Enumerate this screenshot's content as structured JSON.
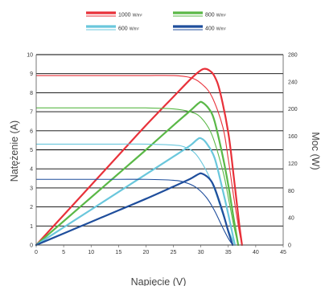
{
  "chart_data": {
    "type": "line",
    "xlabel": "Napięcie (V)",
    "ylabel": "Natężenie (A)",
    "y2label": "Moc (W)",
    "xlim": [
      0,
      45
    ],
    "ylim": [
      0,
      10
    ],
    "y2lim": [
      0,
      280
    ],
    "xticks": [
      0,
      5,
      10,
      15,
      20,
      25,
      30,
      35,
      40,
      45
    ],
    "yticks": [
      0,
      1,
      2,
      3,
      4,
      5,
      6,
      7,
      8,
      9,
      10
    ],
    "y2ticks": [
      0,
      40,
      80,
      120,
      160,
      200,
      240,
      280
    ],
    "grid": "horizontal",
    "legend_position": "top",
    "series": [
      {
        "name": "1000",
        "unit": "W/m²",
        "color": "#e8313a",
        "current": {
          "x": [
            0,
            5,
            10,
            15,
            20,
            25,
            28,
            30,
            32,
            34,
            35,
            36,
            37,
            37.5
          ],
          "y": [
            8.9,
            8.9,
            8.9,
            8.9,
            8.9,
            8.9,
            8.8,
            8.5,
            7.8,
            6.2,
            4.5,
            2.5,
            0.7,
            0
          ]
        },
        "power": {
          "x": [
            0,
            5,
            10,
            15,
            20,
            25,
            28,
            29.5,
            30.5,
            31.5,
            32.5,
            33.5,
            35,
            36,
            37,
            37.5
          ],
          "y": [
            0,
            44,
            88,
            132,
            176,
            218,
            243,
            254,
            259,
            257,
            248,
            225,
            165,
            100,
            30,
            0
          ]
        }
      },
      {
        "name": "800",
        "unit": "W/m²",
        "color": "#5ab847",
        "current": {
          "x": [
            0,
            5,
            10,
            15,
            20,
            25,
            28,
            30,
            32,
            34,
            35,
            36,
            36.8
          ],
          "y": [
            7.2,
            7.2,
            7.2,
            7.2,
            7.2,
            7.15,
            7.0,
            6.7,
            5.8,
            3.9,
            2.5,
            1.0,
            0
          ]
        },
        "power": {
          "x": [
            0,
            5,
            10,
            15,
            20,
            25,
            28,
            29.5,
            30.2,
            31.5,
            32.5,
            34,
            35,
            36,
            36.8
          ],
          "y": [
            0,
            35,
            70,
            105,
            140,
            176,
            197,
            208,
            210,
            200,
            182,
            130,
            88,
            38,
            0
          ]
        }
      },
      {
        "name": "600",
        "unit": "W/m²",
        "color": "#6ac7dc",
        "current": {
          "x": [
            0,
            5,
            10,
            15,
            20,
            25,
            27,
            29,
            31,
            32.5,
            34,
            35,
            36.2
          ],
          "y": [
            5.3,
            5.3,
            5.3,
            5.3,
            5.3,
            5.25,
            5.15,
            4.8,
            3.9,
            2.9,
            1.6,
            0.8,
            0
          ]
        },
        "power": {
          "x": [
            0,
            5,
            10,
            15,
            20,
            25,
            28,
            29.3,
            30,
            31,
            32.5,
            34,
            35,
            36.2
          ],
          "y": [
            0,
            26,
            52,
            78,
            104,
            130,
            146,
            155,
            157,
            150,
            128,
            80,
            45,
            0
          ]
        }
      },
      {
        "name": "400",
        "unit": "W/m²",
        "color": "#1f4e9c",
        "current": {
          "x": [
            0,
            5,
            10,
            15,
            20,
            25,
            27,
            29,
            31,
            32.5,
            34,
            35,
            35.8
          ],
          "y": [
            3.45,
            3.45,
            3.45,
            3.45,
            3.45,
            3.4,
            3.3,
            3.05,
            2.5,
            1.8,
            0.9,
            0.35,
            0
          ]
        },
        "power": {
          "x": [
            0,
            5,
            10,
            15,
            20,
            25,
            28,
            29.5,
            30.2,
            31.5,
            32.5,
            34,
            35,
            35.8
          ],
          "y": [
            0,
            17,
            34,
            51,
            68,
            86,
            97,
            104,
            105,
            98,
            84,
            48,
            20,
            0
          ]
        }
      }
    ]
  }
}
